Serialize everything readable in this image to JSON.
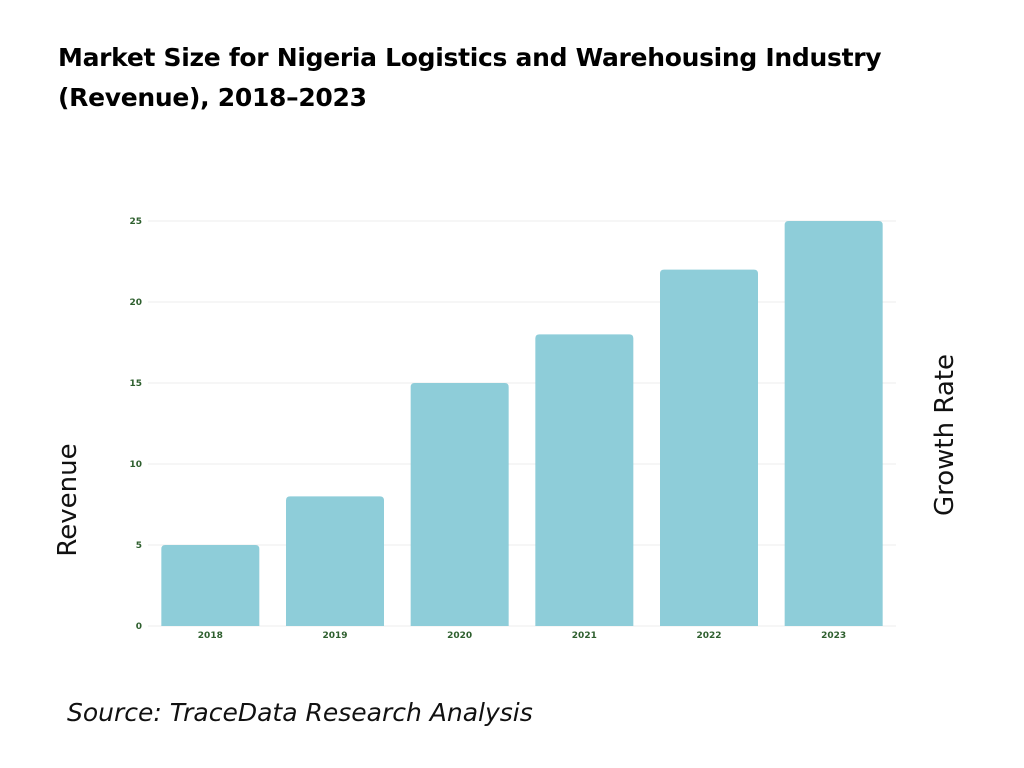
{
  "title_line1": "Market Size for Nigeria Logistics and Warehousing Industry",
  "title_line2": "(Revenue), 2018–2023",
  "source": "Source: TraceData Research Analysis",
  "colors": {
    "bar": "#8ecdd9",
    "grid": "#ececec",
    "tick_text": "#2e5f2e"
  },
  "chart_data": {
    "type": "bar",
    "categories": [
      "2018",
      "2019",
      "2020",
      "2021",
      "2022",
      "2023"
    ],
    "values": [
      5,
      8,
      15,
      18,
      22,
      25
    ],
    "ylabel": "Revenue",
    "y2label": "Growth Rate",
    "xlabel": "",
    "ylim": [
      0,
      25
    ],
    "yticks": [
      0,
      5,
      10,
      15,
      20,
      25
    ],
    "grid": true
  }
}
